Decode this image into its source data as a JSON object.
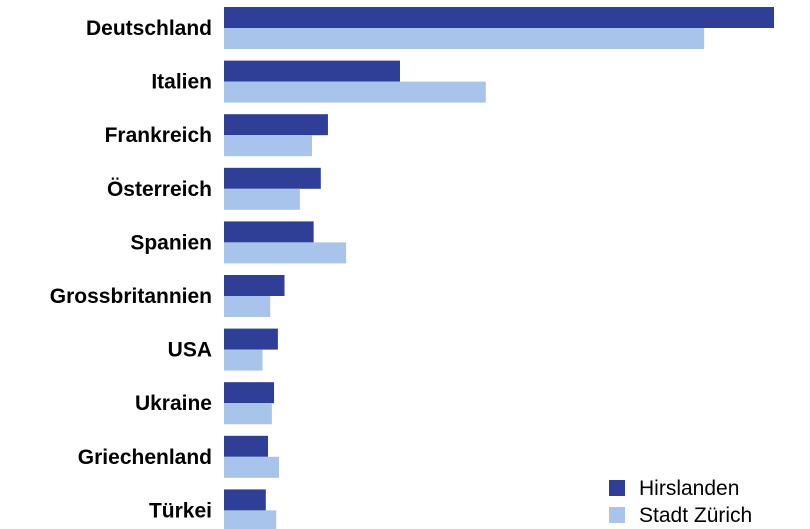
{
  "chart_data": {
    "type": "bar",
    "orientation": "horizontal",
    "categories": [
      "Deutschland",
      "Italien",
      "Frankreich",
      "Österreich",
      "Spanien",
      "Grossbritannien",
      "USA",
      "Ukraine",
      "Griechenland",
      "Türkei"
    ],
    "series": [
      {
        "name": "Hirslanden",
        "color": "#2f3f97",
        "values": [
          100,
          32,
          18.9,
          17.6,
          16.3,
          11,
          9.8,
          9.1,
          8,
          7.6
        ]
      },
      {
        "name": "Stadt Zürich",
        "color": "#a9c4ea",
        "values": [
          87.3,
          47.6,
          16,
          13.8,
          22.2,
          8.4,
          7,
          8.7,
          10,
          9.5
        ]
      }
    ],
    "title": "",
    "xlabel": "",
    "ylabel": "",
    "xlim": [
      0,
      100
    ],
    "grid": false,
    "legend_position": "bottom-right"
  }
}
